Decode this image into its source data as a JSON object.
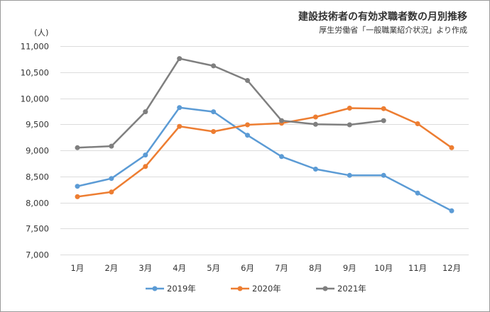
{
  "chart_data": {
    "type": "line",
    "title": "建設技術者の有効求職者数の月別推移",
    "subtitle": "厚生労働省「一般職業紹介状況」より作成",
    "ylabel": "(人)",
    "xlabel": "",
    "categories": [
      "1月",
      "2月",
      "3月",
      "4月",
      "5月",
      "6月",
      "7月",
      "8月",
      "9月",
      "10月",
      "11月",
      "12月"
    ],
    "ylim": [
      7000,
      11000
    ],
    "yticks": [
      7000,
      7500,
      8000,
      8500,
      9000,
      9500,
      10000,
      10500,
      11000
    ],
    "ytick_labels": [
      "7,000",
      "7,500",
      "8,000",
      "8,500",
      "9,000",
      "9,500",
      "10,000",
      "10,500",
      "11,000"
    ],
    "grid": true,
    "legend_position": "bottom",
    "series": [
      {
        "name": "2019年",
        "color": "#5b9bd5",
        "values": [
          8310,
          8460,
          8910,
          9820,
          9740,
          9290,
          8880,
          8640,
          8520,
          8520,
          8180,
          7840
        ]
      },
      {
        "name": "2020年",
        "color": "#ed7d31",
        "values": [
          8110,
          8200,
          8690,
          9460,
          9360,
          9490,
          9520,
          9640,
          9810,
          9800,
          9510,
          9050
        ]
      },
      {
        "name": "2021年",
        "color": "#7f7f7f",
        "values": [
          9050,
          9080,
          9740,
          10760,
          10620,
          10340,
          9570,
          9500,
          9490,
          9570,
          null,
          null
        ]
      }
    ]
  }
}
